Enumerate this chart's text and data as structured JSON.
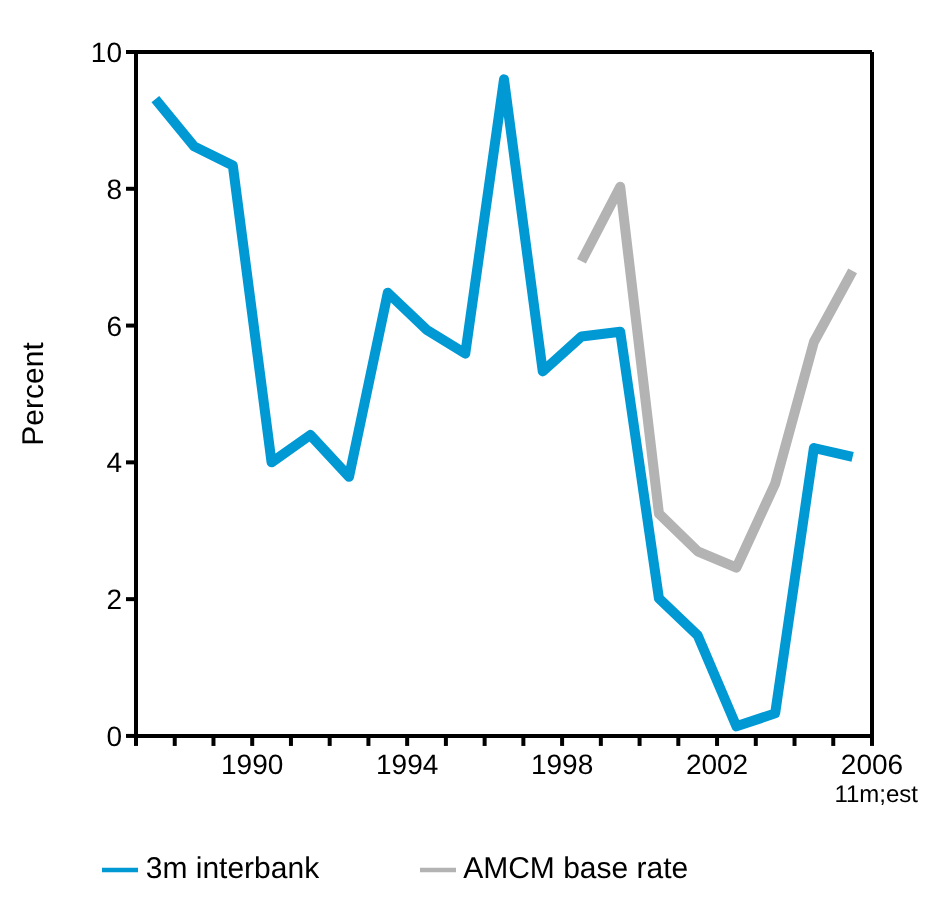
{
  "chart_data": {
    "type": "line",
    "ylabel": "Percent",
    "xlim": [
      1987,
      2006
    ],
    "xticks": [
      {
        "value": 1987,
        "label": null
      },
      {
        "value": 1988,
        "label": null
      },
      {
        "value": 1989,
        "label": null
      },
      1990,
      {
        "value": 1991,
        "label": null
      },
      {
        "value": 1992,
        "label": null
      },
      {
        "value": 1993,
        "label": null
      },
      1994,
      {
        "value": 1995,
        "label": null
      },
      {
        "value": 1996,
        "label": null
      },
      {
        "value": 1997,
        "label": null
      },
      1998,
      {
        "value": 1999,
        "label": null
      },
      {
        "value": 2000,
        "label": null
      },
      {
        "value": 2001,
        "label": null
      },
      2002,
      {
        "value": 2003,
        "label": null
      },
      {
        "value": 2004,
        "label": null
      },
      {
        "value": 2005,
        "label": null
      },
      2006
    ],
    "annotations": [
      "11m;est"
    ],
    "ylim": [
      0,
      10
    ],
    "yticks": [
      0,
      2,
      4,
      6,
      8,
      10
    ],
    "grid": false,
    "legend": "bottom",
    "marker": "none",
    "line_style": "solid",
    "series": [
      {
        "name": "3m interbank",
        "color": "#0099d4",
        "x": [
          1987.5,
          1988.5,
          1989.5,
          1990.5,
          1991.5,
          1992.5,
          1993.5,
          1994.5,
          1995.5,
          1996.5,
          1997.5,
          1998.5,
          1999.5,
          2000.5,
          2001.5,
          2002.5,
          2003.5,
          2004.5,
          2005.5
        ],
        "values": [
          9.31,
          8.62,
          8.34,
          4.0,
          4.4,
          3.79,
          6.48,
          5.94,
          5.59,
          9.6,
          5.33,
          5.84,
          5.91,
          2.01,
          1.47,
          0.14,
          0.33,
          4.21,
          4.08
        ]
      },
      {
        "name": "AMCM base rate",
        "color": "#b3b3b3",
        "x": [
          1998.5,
          1999.5,
          2000.5,
          2001.5,
          2002.5,
          2003.5,
          2004.5,
          2005.5
        ],
        "values": [
          6.94,
          8.03,
          3.25,
          2.7,
          2.46,
          3.69,
          5.76,
          6.8
        ]
      }
    ]
  }
}
